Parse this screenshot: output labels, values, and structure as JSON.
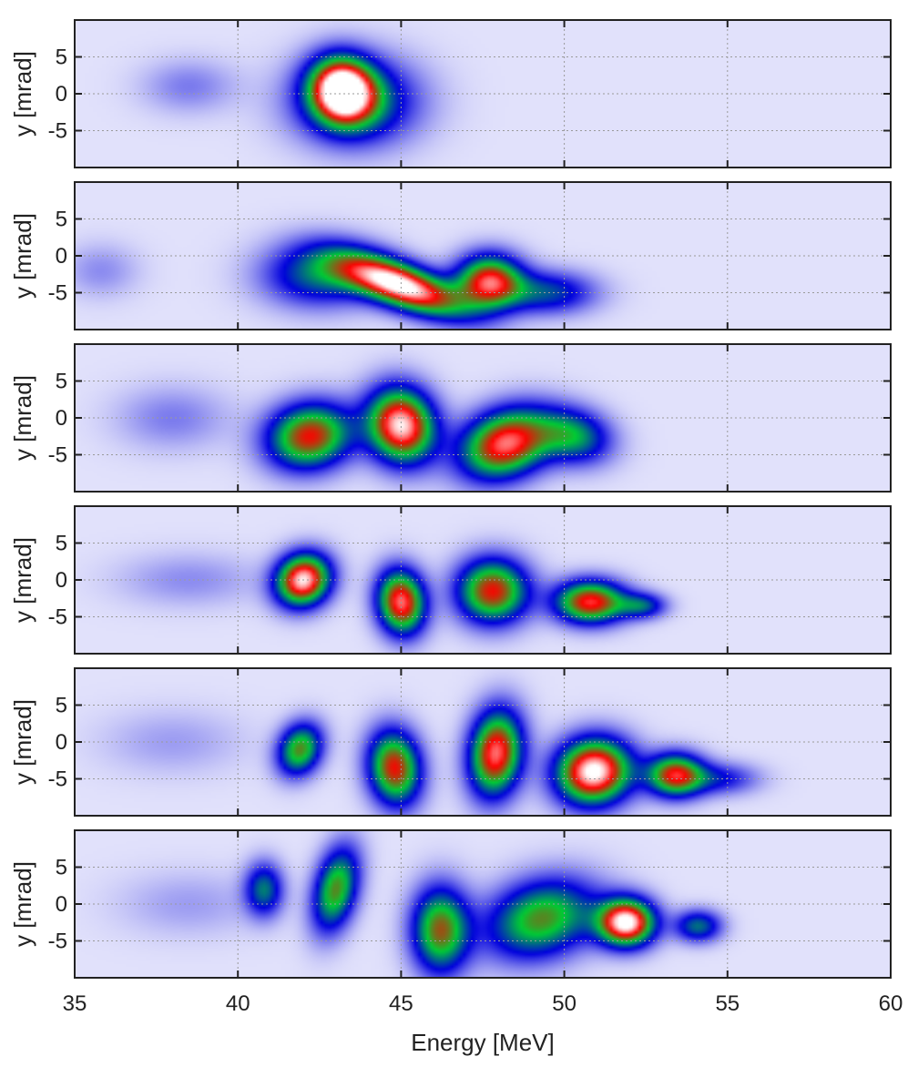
{
  "chart_data": {
    "type": "heatmap",
    "panel_count": 6,
    "xlabel": "Energy [MeV]",
    "ylabel": "y [mrad]",
    "xlim": [
      35,
      60
    ],
    "ylim": [
      -10,
      10
    ],
    "xticks": [
      35,
      40,
      45,
      50,
      55,
      60
    ],
    "yticks": [
      5,
      0,
      -5
    ],
    "grid": true,
    "colormap": [
      "#ffffff",
      "#0000dd",
      "#00cc33",
      "#ff0000",
      "#ffffff"
    ],
    "panels": [
      {
        "blobs": [
          {
            "x": 38.5,
            "y": 1,
            "sx": 1.0,
            "sy": 2.5,
            "rot": 0,
            "a": 0.12
          },
          {
            "x": 43.6,
            "y": -1,
            "sx": 1.3,
            "sy": 4.0,
            "rot": 0,
            "a": 0.45
          },
          {
            "x": 43.2,
            "y": 0.5,
            "sx": 0.65,
            "sy": 3.0,
            "rot": 0.25,
            "a": 0.95
          }
        ]
      },
      {
        "blobs": [
          {
            "x": 35.8,
            "y": -2,
            "sx": 0.8,
            "sy": 2.5,
            "rot": 0,
            "a": 0.1
          },
          {
            "x": 42.5,
            "y": -2.5,
            "sx": 1.2,
            "sy": 3.0,
            "rot": 0,
            "a": 0.4
          },
          {
            "x": 45.0,
            "y": -4.0,
            "sx": 1.4,
            "sy": 2.0,
            "rot": -0.4,
            "a": 1.0
          },
          {
            "x": 47.7,
            "y": -3.5,
            "sx": 0.7,
            "sy": 2.5,
            "rot": 0,
            "a": 0.8
          },
          {
            "x": 49.5,
            "y": -5.0,
            "sx": 1.0,
            "sy": 2.0,
            "rot": 0,
            "a": 0.35
          }
        ]
      },
      {
        "blobs": [
          {
            "x": 38.0,
            "y": 0,
            "sx": 1.2,
            "sy": 3.0,
            "rot": 0,
            "a": 0.12
          },
          {
            "x": 42.2,
            "y": -2.5,
            "sx": 0.9,
            "sy": 3.0,
            "rot": 0.3,
            "a": 0.75
          },
          {
            "x": 45.0,
            "y": -1.0,
            "sx": 0.7,
            "sy": 3.5,
            "rot": 0.2,
            "a": 0.95
          },
          {
            "x": 48.2,
            "y": -3.5,
            "sx": 1.0,
            "sy": 3.0,
            "rot": 0.5,
            "a": 0.85
          },
          {
            "x": 50.3,
            "y": -2.5,
            "sx": 0.8,
            "sy": 2.5,
            "rot": -0.3,
            "a": 0.45
          }
        ]
      },
      {
        "blobs": [
          {
            "x": 38.5,
            "y": 0,
            "sx": 1.5,
            "sy": 2.5,
            "rot": 0,
            "a": 0.1
          },
          {
            "x": 42.0,
            "y": 0,
            "sx": 0.55,
            "sy": 2.5,
            "rot": -0.5,
            "a": 0.95
          },
          {
            "x": 45.0,
            "y": -3.0,
            "sx": 0.5,
            "sy": 3.0,
            "rot": 0.1,
            "a": 0.85
          },
          {
            "x": 47.8,
            "y": -1.5,
            "sx": 0.75,
            "sy": 3.0,
            "rot": -0.3,
            "a": 0.75
          },
          {
            "x": 50.8,
            "y": -3.0,
            "sx": 0.75,
            "sy": 2.0,
            "rot": 0,
            "a": 0.8
          },
          {
            "x": 52.4,
            "y": -3.5,
            "sx": 0.5,
            "sy": 1.2,
            "rot": 0,
            "a": 0.35
          }
        ]
      },
      {
        "blobs": [
          {
            "x": 38.0,
            "y": 0,
            "sx": 1.5,
            "sy": 3.0,
            "rot": 0,
            "a": 0.08
          },
          {
            "x": 41.9,
            "y": -1.0,
            "sx": 0.45,
            "sy": 2.5,
            "rot": -0.3,
            "a": 0.6
          },
          {
            "x": 44.8,
            "y": -3.5,
            "sx": 0.55,
            "sy": 3.5,
            "rot": 0.1,
            "a": 0.75
          },
          {
            "x": 47.9,
            "y": -1.5,
            "sx": 0.55,
            "sy": 4.0,
            "rot": -0.1,
            "a": 0.85
          },
          {
            "x": 50.9,
            "y": -4.0,
            "sx": 0.8,
            "sy": 3.0,
            "rot": 0.5,
            "a": 1.0
          },
          {
            "x": 53.4,
            "y": -4.5,
            "sx": 0.6,
            "sy": 2.0,
            "rot": 0,
            "a": 0.75
          },
          {
            "x": 54.8,
            "y": -5.0,
            "sx": 0.8,
            "sy": 1.5,
            "rot": 0,
            "a": 0.25
          }
        ]
      },
      {
        "blobs": [
          {
            "x": 38.5,
            "y": 0,
            "sx": 1.5,
            "sy": 3.0,
            "rot": 0,
            "a": 0.08
          },
          {
            "x": 40.8,
            "y": 2.0,
            "sx": 0.4,
            "sy": 2.5,
            "rot": 0,
            "a": 0.4
          },
          {
            "x": 43.0,
            "y": 2.0,
            "sx": 0.45,
            "sy": 4.0,
            "rot": -0.2,
            "a": 0.6
          },
          {
            "x": 46.2,
            "y": -3.5,
            "sx": 0.6,
            "sy": 4.0,
            "rot": 0,
            "a": 0.65
          },
          {
            "x": 49.3,
            "y": -2.0,
            "sx": 1.2,
            "sy": 3.5,
            "rot": 0.4,
            "a": 0.6
          },
          {
            "x": 51.9,
            "y": -2.5,
            "sx": 0.6,
            "sy": 2.2,
            "rot": 0,
            "a": 1.0
          },
          {
            "x": 54.1,
            "y": -3.0,
            "sx": 0.5,
            "sy": 1.5,
            "rot": 0,
            "a": 0.4
          }
        ]
      }
    ]
  }
}
